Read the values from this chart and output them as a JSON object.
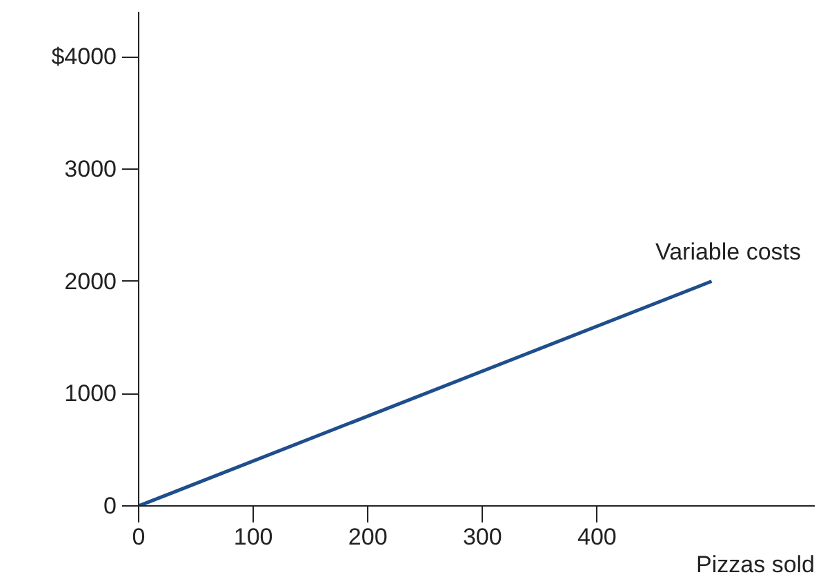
{
  "chart_data": {
    "type": "line",
    "xlabel": "Pizzas sold",
    "x": [
      0,
      500
    ],
    "series": [
      {
        "name": "Variable costs",
        "color": "#1f4e8c",
        "values": [
          0,
          2000
        ]
      }
    ],
    "xlim": [
      0,
      590
    ],
    "ylim": [
      0,
      4400
    ],
    "xticks": [
      0,
      100,
      200,
      300,
      400
    ],
    "yticks": [
      0,
      1000,
      2000,
      3000,
      {
        "value": 4000,
        "label": "$4000"
      }
    ],
    "grid": false,
    "marker": "none",
    "line_style": "solid"
  }
}
